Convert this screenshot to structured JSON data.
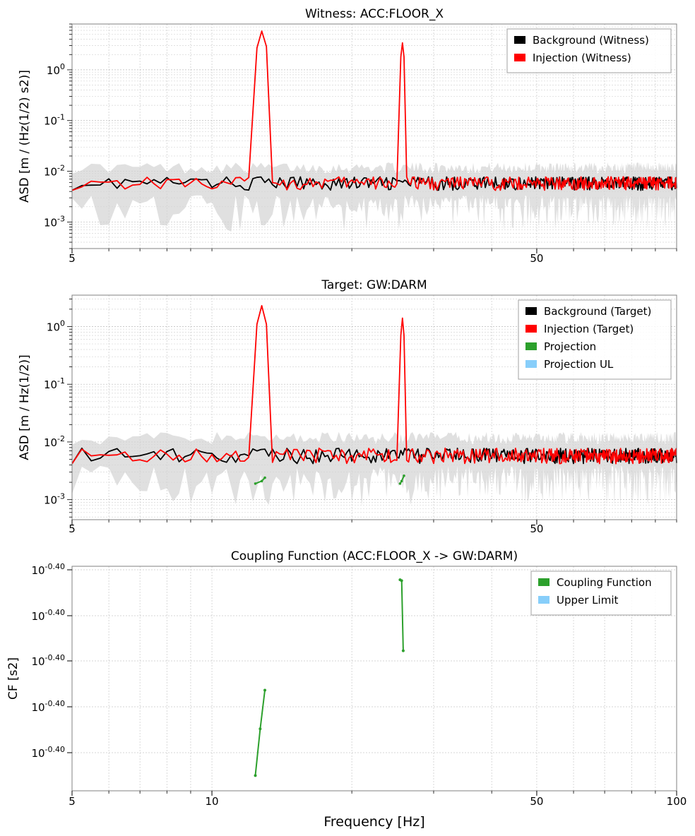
{
  "figure": {
    "xlabel": "Frequency [Hz]"
  },
  "chart_data": [
    {
      "type": "line",
      "title": "Witness: ACC:FLOOR_X",
      "ylabel": "ASD [m / (Hz(1/2) s2)]",
      "xscale": "log",
      "yscale": "log",
      "xlim": [
        5,
        100
      ],
      "ylim": [
        0.0003,
        8
      ],
      "x_ticks": [
        5,
        50
      ],
      "y_ticks": [
        0.001,
        0.01,
        0.1,
        1
      ],
      "y_tick_labels": [
        "10^-3",
        "10^-2",
        "10^-1",
        "10^0"
      ],
      "grid": true,
      "legend_position": "top-right",
      "band": {
        "color": "#d3d3d3",
        "range": [
          0.0008,
          0.012
        ]
      },
      "series": [
        {
          "name": "Background (Witness)",
          "color": "#000000",
          "level": 0.006
        },
        {
          "name": "Injection (Witness)",
          "color": "#ff0000",
          "level": 0.006,
          "peaks": [
            {
              "x": [
                12.5,
                12.8,
                13.1
              ],
              "y": [
                2.7,
                5.8,
                2.9
              ]
            },
            {
              "x": [
                25.5,
                25.7,
                25.9
              ],
              "y": [
                1.8,
                3.4,
                1.8
              ]
            }
          ]
        }
      ]
    },
    {
      "type": "line",
      "title": "Target: GW:DARM",
      "ylabel": "ASD [m / Hz(1/2)]",
      "xscale": "log",
      "yscale": "log",
      "xlim": [
        5,
        100
      ],
      "ylim": [
        0.00045,
        3.5
      ],
      "x_ticks": [
        5,
        50
      ],
      "y_ticks": [
        0.001,
        0.01,
        0.1,
        1
      ],
      "y_tick_labels": [
        "10^-3",
        "10^-2",
        "10^-1",
        "10^0"
      ],
      "grid": true,
      "legend_position": "top-right",
      "band": {
        "color": "#d3d3d3",
        "range": [
          0.0009,
          0.012
        ]
      },
      "series": [
        {
          "name": "Background (Target)",
          "color": "#000000",
          "level": 0.006
        },
        {
          "name": "Injection (Target)",
          "color": "#ff0000",
          "level": 0.006,
          "peaks": [
            {
              "x": [
                12.5,
                12.8,
                13.1
              ],
              "y": [
                1.1,
                2.3,
                1.1
              ]
            },
            {
              "x": [
                25.5,
                25.7,
                25.9
              ],
              "y": [
                0.7,
                1.4,
                0.7
              ]
            }
          ]
        },
        {
          "name": "Projection",
          "color": "#2ca02c",
          "segments": [
            {
              "x": [
                12.4,
                12.8,
                13.0
              ],
              "y": [
                0.0019,
                0.0021,
                0.0024
              ]
            },
            {
              "x": [
                25.4,
                25.6,
                25.9
              ],
              "y": [
                0.0019,
                0.0021,
                0.0026
              ]
            }
          ]
        },
        {
          "name": "Projection UL",
          "color": "#87cefa",
          "segments": []
        }
      ]
    },
    {
      "type": "line",
      "title": "Coupling Function (ACC:FLOOR_X -> GW:DARM)",
      "ylabel": "CF [s2]",
      "xscale": "log",
      "yscale": "log",
      "xlim": [
        5,
        100
      ],
      "x_ticks": [
        5,
        10,
        50,
        100
      ],
      "y_tick_labels": [
        "10^-0.40",
        "10^-0.40",
        "10^-0.40",
        "10^-0.40",
        "10^-0.40"
      ],
      "grid": true,
      "legend_position": "top-right",
      "series": [
        {
          "name": "Coupling Function",
          "color": "#2ca02c",
          "segments": [
            {
              "x": [
                12.4,
                12.7,
                13.0
              ],
              "y": [
                0.3737,
                0.3789,
                0.3832
              ]
            },
            {
              "x": [
                25.4,
                25.6,
                25.8
              ],
              "y": [
                0.3955,
                0.3954,
                0.3876
              ]
            }
          ]
        },
        {
          "name": "Upper Limit",
          "color": "#87cefa",
          "segments": []
        }
      ]
    }
  ]
}
